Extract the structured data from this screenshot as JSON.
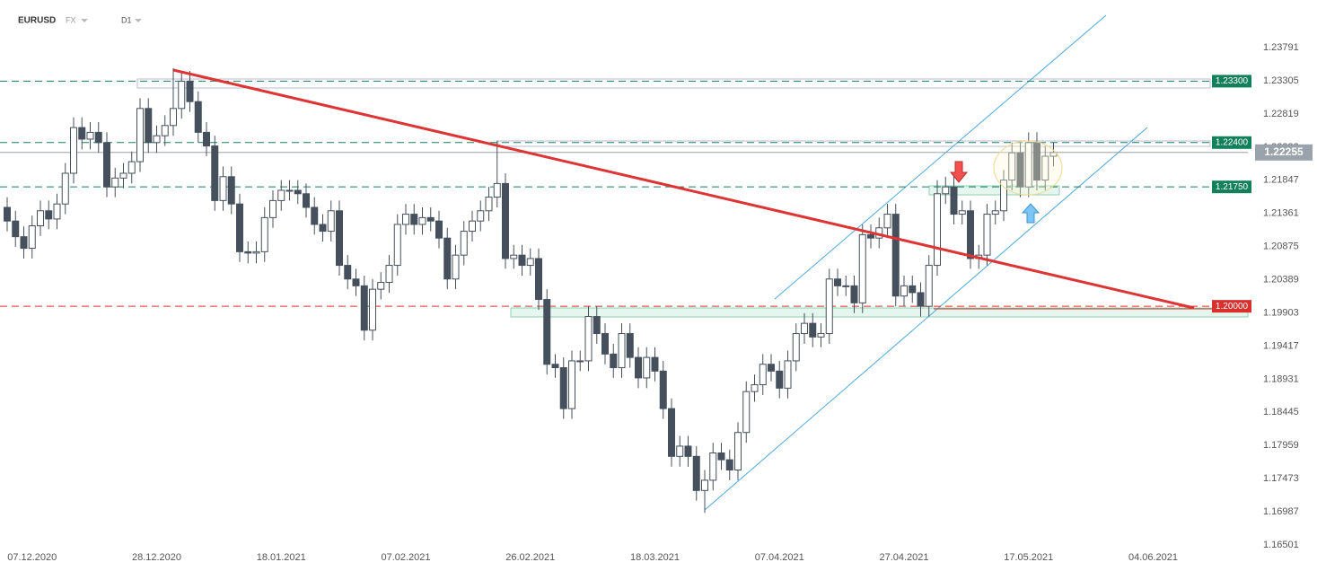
{
  "header": {
    "symbol": "EURUSD",
    "market": "FX",
    "timeframe": "D1"
  },
  "chart_data": {
    "type": "candlestick",
    "categories": [
      null,
      null,
      null,
      "07.12.2020",
      null,
      null,
      null,
      null,
      null,
      null,
      null,
      null,
      null,
      null,
      null,
      null,
      null,
      null,
      "28.12.2020",
      null,
      null,
      null,
      null,
      null,
      null,
      null,
      null,
      null,
      null,
      null,
      null,
      null,
      null,
      "18.01.2021",
      null,
      null,
      null,
      null,
      null,
      null,
      null,
      null,
      null,
      null,
      null,
      null,
      null,
      null,
      "07.02.2021",
      null,
      null,
      null,
      null,
      null,
      null,
      null,
      null,
      null,
      null,
      null,
      null,
      null,
      null,
      "26.02.2021",
      null,
      null,
      null,
      null,
      null,
      null,
      null,
      null,
      null,
      null,
      null,
      null,
      null,
      null,
      "18.03.2021",
      null,
      null,
      null,
      null,
      null,
      null,
      null,
      null,
      null,
      null,
      null,
      null,
      null,
      null,
      "07.04.2021",
      null,
      null,
      null,
      null,
      null,
      null,
      null,
      null,
      null,
      null,
      null,
      null,
      null,
      null,
      "27.04.2021",
      null,
      null,
      null,
      null,
      null,
      null,
      null,
      null,
      null,
      null,
      null,
      null,
      null,
      null,
      "17.05.2021",
      null,
      null,
      null,
      null,
      null,
      null,
      null,
      null,
      null,
      null,
      null,
      null,
      null,
      null,
      "04.06.2021"
    ],
    "opens": [
      1.2145,
      1.2125,
      1.2102,
      1.2085,
      1.2118,
      1.214,
      1.2128,
      1.215,
      1.2195,
      1.2262,
      1.2245,
      1.2255,
      1.224,
      1.2175,
      1.2188,
      1.2195,
      1.2212,
      1.229,
      1.224,
      1.225,
      1.2265,
      1.229,
      1.233,
      1.23,
      1.2255,
      1.2235,
      1.2155,
      1.219,
      1.215,
      1.208,
      1.2078,
      1.208,
      1.213,
      1.2155,
      1.217,
      1.217,
      1.2165,
      1.2145,
      1.212,
      1.211,
      1.214,
      1.206,
      1.204,
      1.203,
      1.1965,
      1.2025,
      1.2035,
      1.206,
      1.212,
      1.2135,
      1.212,
      1.213,
      1.2125,
      1.21,
      1.204,
      1.2075,
      1.211,
      1.2125,
      1.214,
      1.216,
      1.218,
      1.207,
      1.2075,
      1.206,
      1.207,
      1.201,
      1.1915,
      1.191,
      1.185,
      1.192,
      1.192,
      1.1985,
      1.196,
      1.193,
      1.191,
      1.196,
      1.1925,
      1.1895,
      1.1925,
      1.1905,
      1.185,
      1.178,
      1.1795,
      1.178,
      1.173,
      1.1745,
      1.1785,
      1.1775,
      1.176,
      1.1815,
      1.1875,
      1.1885,
      1.1915,
      1.1905,
      1.188,
      1.192,
      1.196,
      1.1975,
      1.1955,
      1.196,
      1.204,
      1.203,
      1.203,
      1.2005,
      1.2105,
      1.21,
      1.2115,
      1.2135,
      1.2015,
      1.203,
      1.202,
      1.2,
      1.206,
      1.2165,
      1.2175,
      1.2135,
      1.214,
      1.207,
      1.2075,
      1.2135,
      1.214,
      1.2185,
      1.2225,
      1.2175,
      1.224,
      1.2185,
      1.222,
      null,
      null,
      null,
      null,
      null,
      null,
      null,
      null,
      null,
      null,
      null,
      null
    ],
    "highs": [
      1.216,
      1.214,
      1.2117,
      1.2133,
      1.2155,
      1.2155,
      1.2165,
      1.221,
      1.2277,
      1.2277,
      1.227,
      1.227,
      1.2255,
      1.2203,
      1.221,
      1.2227,
      1.2305,
      1.2305,
      1.2265,
      1.228,
      1.2349,
      1.2345,
      1.2345,
      1.2315,
      1.227,
      1.225,
      1.2205,
      1.2205,
      1.2165,
      1.2095,
      1.2095,
      1.2145,
      1.217,
      1.2185,
      1.2185,
      1.2185,
      1.218,
      1.216,
      1.2135,
      1.2155,
      1.2155,
      1.2075,
      1.2055,
      1.2045,
      1.204,
      1.205,
      1.2075,
      1.2135,
      1.215,
      1.215,
      1.2145,
      1.2145,
      1.214,
      1.2115,
      1.209,
      1.2125,
      1.214,
      1.2155,
      1.2175,
      1.2243,
      1.2195,
      1.209,
      1.209,
      1.2085,
      1.2085,
      1.2025,
      1.193,
      1.1925,
      1.1935,
      1.1935,
      1.2,
      1.2,
      1.1975,
      1.1945,
      1.1975,
      1.1975,
      1.194,
      1.194,
      1.194,
      1.192,
      1.1865,
      1.181,
      1.181,
      1.1795,
      1.176,
      1.18,
      1.18,
      1.179,
      1.183,
      1.189,
      1.19,
      1.193,
      1.193,
      1.192,
      1.1935,
      1.1975,
      1.199,
      1.199,
      1.1975,
      1.2055,
      1.2055,
      1.2045,
      1.2045,
      1.212,
      1.212,
      1.213,
      1.215,
      1.215,
      1.2045,
      1.2045,
      1.2035,
      1.2075,
      1.2185,
      1.219,
      1.219,
      1.2155,
      1.2155,
      1.209,
      1.215,
      1.2155,
      1.22,
      1.224,
      1.224,
      1.2255,
      1.2255,
      1.2235,
      1.224,
      null,
      null,
      null,
      null,
      null,
      null,
      null,
      null,
      null,
      null,
      null,
      null
    ],
    "lows": [
      1.211,
      1.2087,
      1.207,
      1.207,
      1.2103,
      1.2113,
      1.2113,
      1.2135,
      1.218,
      1.223,
      1.223,
      1.2225,
      1.216,
      1.216,
      1.2173,
      1.218,
      1.2197,
      1.2225,
      1.2225,
      1.2235,
      1.225,
      1.2275,
      1.2285,
      1.224,
      1.222,
      1.214,
      1.214,
      1.2135,
      1.2065,
      1.2063,
      1.2063,
      1.2065,
      1.2115,
      1.214,
      1.2155,
      1.215,
      1.213,
      1.2105,
      1.2095,
      1.2095,
      1.2045,
      1.2025,
      1.2015,
      1.195,
      1.195,
      1.201,
      1.202,
      1.2045,
      1.2105,
      1.2105,
      1.2105,
      1.211,
      1.2085,
      1.2025,
      1.2025,
      1.206,
      1.2095,
      1.211,
      1.2125,
      1.2145,
      1.2055,
      1.2055,
      1.2045,
      1.2045,
      1.1995,
      1.19,
      1.1895,
      1.1835,
      1.1835,
      1.1905,
      1.1905,
      1.1945,
      1.1915,
      1.1895,
      1.1895,
      1.191,
      1.188,
      1.188,
      1.189,
      1.1835,
      1.1765,
      1.1765,
      1.1765,
      1.1715,
      1.1697,
      1.173,
      1.176,
      1.1745,
      1.1745,
      1.18,
      1.186,
      1.187,
      1.189,
      1.1865,
      1.1865,
      1.1905,
      1.1945,
      1.194,
      1.194,
      1.1945,
      1.2015,
      1.2015,
      1.199,
      1.199,
      1.2085,
      1.2085,
      1.21,
      1.2,
      1.2,
      1.2005,
      1.1985,
      1.1985,
      1.2045,
      1.215,
      1.212,
      1.212,
      1.2055,
      1.2055,
      1.206,
      1.212,
      1.2125,
      1.217,
      1.216,
      1.216,
      1.217,
      1.217,
      1.2205,
      null,
      null,
      null,
      null,
      null,
      null,
      null,
      null,
      null,
      null,
      null,
      null
    ],
    "closes": [
      1.2125,
      1.2102,
      1.2085,
      1.2118,
      1.214,
      1.2128,
      1.215,
      1.2195,
      1.2262,
      1.2245,
      1.2255,
      1.224,
      1.2175,
      1.2188,
      1.2195,
      1.2212,
      1.229,
      1.224,
      1.225,
      1.2265,
      1.229,
      1.233,
      1.23,
      1.2255,
      1.2235,
      1.2155,
      1.219,
      1.215,
      1.208,
      1.2078,
      1.208,
      1.213,
      1.2155,
      1.217,
      1.217,
      1.2165,
      1.2145,
      1.212,
      1.211,
      1.214,
      1.206,
      1.204,
      1.203,
      1.1965,
      1.2025,
      1.2035,
      1.206,
      1.212,
      1.2135,
      1.212,
      1.213,
      1.2125,
      1.21,
      1.204,
      1.2075,
      1.211,
      1.2125,
      1.214,
      1.216,
      1.218,
      1.207,
      1.2075,
      1.206,
      1.207,
      1.201,
      1.1915,
      1.191,
      1.185,
      1.192,
      1.192,
      1.1985,
      1.196,
      1.193,
      1.191,
      1.196,
      1.1925,
      1.1895,
      1.1925,
      1.1905,
      1.185,
      1.178,
      1.1795,
      1.178,
      1.173,
      1.1745,
      1.1785,
      1.1775,
      1.176,
      1.1815,
      1.1875,
      1.1885,
      1.1915,
      1.1905,
      1.188,
      1.192,
      1.196,
      1.1975,
      1.1955,
      1.196,
      1.204,
      1.203,
      1.203,
      1.2005,
      1.2105,
      1.21,
      1.2115,
      1.2135,
      1.2015,
      1.203,
      1.202,
      1.2,
      1.206,
      1.2165,
      1.2175,
      1.2135,
      1.214,
      1.207,
      1.2075,
      1.2135,
      1.214,
      1.2185,
      1.2225,
      1.2175,
      1.224,
      1.2185,
      1.222,
      1.22255,
      null,
      null,
      null,
      null,
      null,
      null,
      null,
      null,
      null,
      null,
      null,
      null
    ],
    "up_color": "#ffffff",
    "down_color": "#45505c",
    "wick_color": "#45505c",
    "ylim": [
      1.1633,
      1.2449
    ],
    "yticks": [
      1.23791,
      1.23305,
      1.22819,
      1.22333,
      1.21847,
      1.21361,
      1.20875,
      1.20389,
      1.19903,
      1.19417,
      1.18931,
      1.18445,
      1.17959,
      1.17473,
      1.16987,
      1.16501
    ],
    "levels": [
      {
        "value": 1.233,
        "label": "1.23300",
        "color": "#13805c"
      },
      {
        "value": 1.224,
        "label": "1.22400",
        "color": "#13805c"
      },
      {
        "value": 1.2175,
        "label": "1.21750",
        "color": "#13805c"
      },
      {
        "value": 1.2,
        "label": "1.20000",
        "color": "#d8302c"
      }
    ],
    "last_price_color": "#9aa3ab"
  }
}
